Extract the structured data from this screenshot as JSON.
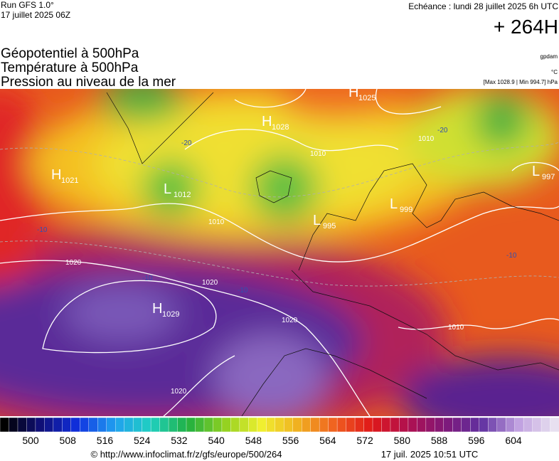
{
  "header": {
    "run": "Run GFS 1.0°",
    "run_date": "17 juillet 2025 06Z",
    "valid": "Echéance : lundi 28 juillet 2025 6h UTC",
    "lead": "+ 264H",
    "layers": [
      "Géopotentiel à 500hPa",
      "Température à 500hPa",
      "Pression au niveau de la mer"
    ],
    "units": [
      "gpdam",
      "°C",
      "[Max 1028.9 | Min 994.7] hPa"
    ]
  },
  "map": {
    "centers": [
      {
        "letter": "H",
        "value": "1025"
      },
      {
        "letter": "H",
        "value": "1028"
      },
      {
        "letter": "H",
        "value": "1021"
      },
      {
        "letter": "L",
        "value": "1012"
      },
      {
        "letter": "L",
        "value": "995"
      },
      {
        "letter": "L",
        "value": "999"
      },
      {
        "letter": "L",
        "value": "997"
      },
      {
        "letter": "H",
        "value": "1029"
      }
    ],
    "isobar_labels": [
      "1010",
      "1010",
      "1020",
      "1020",
      "1020",
      "1010",
      "1020",
      "1010"
    ],
    "temp_labels": [
      "-20",
      "-20",
      "-10",
      "-10",
      "-10",
      "-10"
    ]
  },
  "legend": {
    "ticks": [
      "500",
      "508",
      "516",
      "524",
      "532",
      "540",
      "548",
      "556",
      "564",
      "572",
      "580",
      "588",
      "596",
      "604"
    ]
  },
  "footer": {
    "url": "© http://www.infoclimat.fr/z/gfs/europe/500/264",
    "timestamp": "17 juil. 2025 10:51 UTC"
  }
}
